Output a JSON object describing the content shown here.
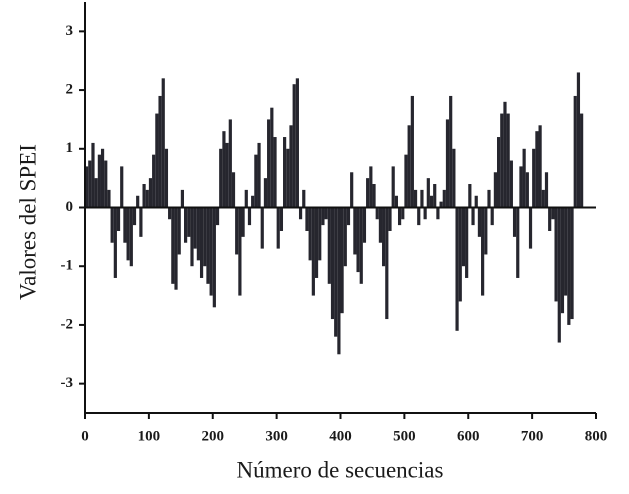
{
  "chart_data": {
    "type": "bar",
    "x_label": "Número de secuencias",
    "y_label": "Valores del SPEI",
    "color": "#26262e",
    "x": [
      0,
      5,
      10,
      15,
      20,
      25,
      30,
      35,
      40,
      45,
      50,
      55,
      60,
      65,
      70,
      75,
      80,
      85,
      90,
      95,
      100,
      105,
      110,
      115,
      120,
      125,
      130,
      135,
      140,
      145,
      150,
      155,
      160,
      165,
      170,
      175,
      180,
      185,
      190,
      195,
      200,
      205,
      210,
      215,
      220,
      225,
      230,
      235,
      240,
      245,
      250,
      255,
      260,
      265,
      270,
      275,
      280,
      285,
      290,
      295,
      300,
      305,
      310,
      315,
      320,
      325,
      330,
      335,
      340,
      345,
      350,
      355,
      360,
      365,
      370,
      375,
      380,
      385,
      390,
      395,
      400,
      405,
      410,
      415,
      420,
      425,
      430,
      435,
      440,
      445,
      450,
      455,
      460,
      465,
      470,
      475,
      480,
      485,
      490,
      495,
      500,
      505,
      510,
      515,
      520,
      525,
      530,
      535,
      540,
      545,
      550,
      555,
      560,
      565,
      570,
      575,
      580,
      585,
      590,
      595,
      600,
      605,
      610,
      615,
      620,
      625,
      630,
      635,
      640,
      645,
      650,
      655,
      660,
      665,
      670,
      675,
      680,
      685,
      690,
      695,
      700,
      705,
      710,
      715,
      720,
      725,
      730,
      735,
      740,
      745,
      750,
      755,
      760,
      765,
      770,
      775
    ],
    "values": [
      0.7,
      0.8,
      1.1,
      0.5,
      0.9,
      1.0,
      0.8,
      0.3,
      -0.6,
      -1.2,
      -0.4,
      0.7,
      -0.6,
      -0.9,
      -1.0,
      -0.3,
      0.2,
      -0.5,
      0.4,
      0.3,
      0.5,
      0.9,
      1.6,
      1.9,
      2.2,
      1.0,
      -0.2,
      -1.3,
      -1.4,
      -0.8,
      0.3,
      -0.6,
      -0.5,
      -1.0,
      -0.7,
      -0.9,
      -1.2,
      -1.0,
      -1.3,
      -1.5,
      -1.7,
      -0.3,
      1.0,
      1.3,
      1.1,
      1.5,
      0.6,
      -0.8,
      -1.5,
      -0.5,
      0.3,
      -0.3,
      0.2,
      0.9,
      1.1,
      -0.7,
      0.5,
      1.5,
      1.7,
      1.2,
      -0.7,
      -0.4,
      1.2,
      1.0,
      1.4,
      2.1,
      2.2,
      -0.2,
      0.3,
      -0.4,
      -0.9,
      -1.5,
      -1.2,
      -0.9,
      -0.3,
      -0.2,
      -1.3,
      -1.9,
      -2.2,
      -2.5,
      -1.8,
      -1.0,
      -0.3,
      0.6,
      -0.8,
      -1.1,
      -1.3,
      -0.6,
      0.5,
      0.7,
      0.4,
      -0.2,
      -0.6,
      -1.0,
      -1.9,
      -0.4,
      0.7,
      0.2,
      -0.3,
      -0.2,
      0.9,
      1.4,
      1.9,
      0.3,
      -0.3,
      0.3,
      -0.2,
      0.5,
      0.2,
      0.4,
      -0.2,
      0.1,
      0.3,
      1.5,
      1.9,
      1.0,
      -2.1,
      -1.6,
      -1.0,
      -1.2,
      0.4,
      -0.3,
      0.2,
      -0.5,
      -1.5,
      -0.8,
      0.3,
      -0.3,
      0.6,
      1.2,
      1.6,
      1.8,
      1.6,
      0.8,
      -0.5,
      -1.2,
      0.7,
      1.0,
      0.6,
      -0.7,
      1.0,
      1.3,
      1.4,
      0.3,
      0.6,
      -0.4,
      -0.2,
      -1.6,
      -2.3,
      -1.8,
      -1.5,
      -2.0,
      -1.9,
      1.9,
      2.3,
      1.6
    ],
    "xlim": [
      0,
      800
    ],
    "xticks": [
      0,
      100,
      200,
      300,
      400,
      500,
      600,
      700,
      800
    ],
    "ylim": [
      -3.5,
      3.5
    ],
    "yticks": [
      -3,
      -2,
      -1,
      0,
      1,
      2,
      3
    ]
  }
}
